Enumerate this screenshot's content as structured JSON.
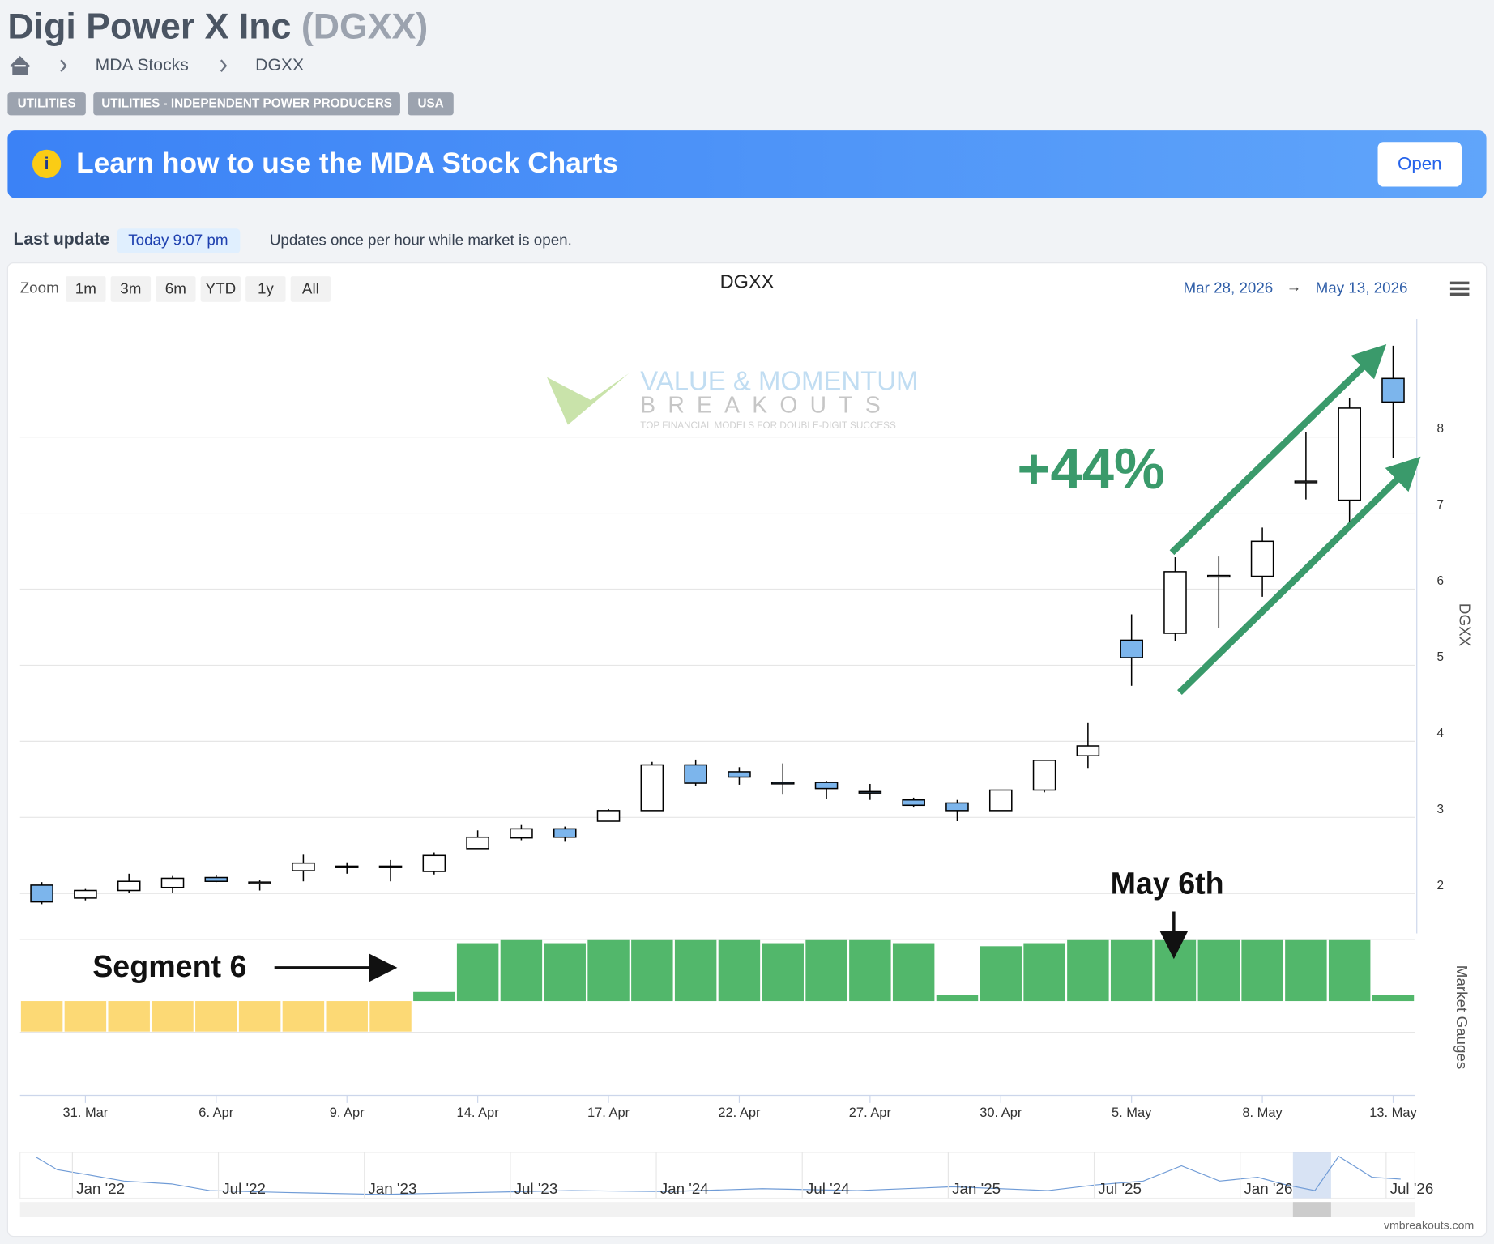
{
  "header": {
    "title": "Digi Power X Inc",
    "ticker": "(DGXX)",
    "breadcrumb": [
      "MDA Stocks",
      "DGXX"
    ],
    "tags": [
      "UTILITIES",
      "UTILITIES - INDEPENDENT POWER PRODUCERS",
      "USA"
    ]
  },
  "banner": {
    "text": "Learn how to use the MDA Stock Charts",
    "button": "Open"
  },
  "update": {
    "label": "Last update",
    "time": "Today 9:07 pm",
    "note": "Updates once per hour while market is open."
  },
  "toolbar": {
    "zoom_label": "Zoom",
    "zoom_buttons": [
      "1m",
      "3m",
      "6m",
      "YTD",
      "1y",
      "All"
    ],
    "from": "Mar 28, 2026",
    "arrow": "→",
    "to": "May 13, 2026"
  },
  "watermark": {
    "line1": "VALUE & MOMENTUM",
    "line2": "BREAKOUTS",
    "line3": "TOP FINANCIAL MODELS FOR DOUBLE-DIGIT SUCCESS"
  },
  "chart_data": [
    {
      "type": "candlestick",
      "title": "DGXX",
      "y_label": "DGXX",
      "categories": [
        null,
        "31. Mar",
        null,
        null,
        "6. Apr",
        null,
        null,
        "9. Apr",
        null,
        null,
        "14. Apr",
        null,
        null,
        "17. Apr",
        null,
        null,
        "22. Apr",
        null,
        null,
        "27. Apr",
        null,
        null,
        "30. Apr",
        null,
        null,
        "5. May",
        null,
        null,
        "8. May",
        null,
        null,
        "13. May"
      ],
      "open": [
        2.11,
        1.94,
        2.04,
        2.08,
        2.21,
        2.14,
        2.3,
        2.35,
        2.35,
        2.29,
        2.59,
        2.73,
        2.85,
        2.95,
        3.09,
        3.69,
        3.6,
        3.46,
        3.46,
        3.34,
        3.23,
        3.19,
        3.09,
        3.36,
        3.81,
        5.33,
        5.42,
        6.17,
        6.17,
        7.41,
        7.17,
        8.77
      ],
      "high": [
        2.15,
        2.06,
        2.26,
        2.23,
        2.24,
        2.18,
        2.51,
        2.41,
        2.44,
        2.54,
        2.83,
        2.9,
        2.88,
        3.11,
        3.73,
        3.76,
        3.66,
        3.71,
        3.48,
        3.44,
        3.26,
        3.23,
        3.36,
        3.75,
        4.24,
        5.67,
        6.42,
        6.43,
        6.81,
        8.07,
        8.51,
        9.2
      ],
      "low": [
        1.86,
        1.91,
        2.01,
        2.01,
        2.15,
        2.04,
        2.16,
        2.26,
        2.16,
        2.25,
        2.59,
        2.7,
        2.68,
        2.95,
        3.09,
        3.41,
        3.43,
        3.31,
        3.24,
        3.23,
        3.13,
        2.95,
        3.09,
        3.33,
        3.65,
        4.73,
        5.32,
        5.49,
        5.9,
        7.18,
        6.88,
        7.72
      ],
      "close": [
        1.89,
        2.04,
        2.16,
        2.2,
        2.16,
        2.15,
        2.4,
        2.36,
        2.36,
        2.5,
        2.74,
        2.85,
        2.74,
        3.09,
        3.69,
        3.45,
        3.53,
        3.45,
        3.38,
        3.33,
        3.16,
        3.09,
        3.36,
        3.75,
        3.94,
        5.1,
        6.23,
        6.18,
        6.63,
        7.42,
        8.38,
        8.46
      ],
      "up_color": "#ffffff",
      "down_color": "#7cb5ec",
      "ylim": [
        1.4,
        9.6
      ],
      "yticks": [
        2,
        3,
        4,
        5,
        6,
        7,
        8
      ],
      "grid": true,
      "annotations": [
        "+44%",
        "May 6th",
        "Segment 6"
      ]
    },
    {
      "type": "bar",
      "y_label": "Market Gauges",
      "values": [
        -0.5,
        -0.5,
        -0.5,
        -0.5,
        -0.5,
        -0.5,
        -0.5,
        -0.5,
        -0.5,
        0.15,
        0.95,
        1,
        0.95,
        1,
        1,
        1,
        1,
        0.95,
        1,
        1,
        0.95,
        0.1,
        0.9,
        0.95,
        1,
        1,
        1,
        1,
        1,
        1,
        1,
        0.1
      ],
      "positive_color": "#52b76b",
      "negative_color": "#fcd975",
      "ylim": [
        -1,
        1
      ]
    }
  ],
  "navigator": {
    "labels": [
      "Jan '22",
      "Jul '22",
      "Jan '23",
      "Jul '23",
      "Jan '24",
      "Jul '24",
      "Jan '25",
      "Jul '25",
      "Jan '26",
      "Jul '26"
    ]
  },
  "credits": "vmbreakouts.com"
}
